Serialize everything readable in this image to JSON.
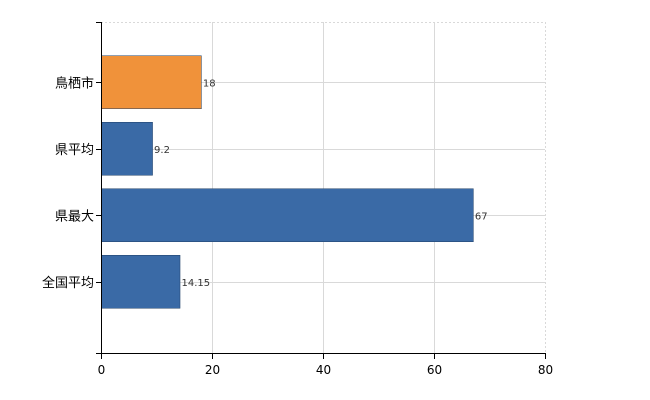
{
  "chart_data": {
    "type": "bar",
    "orientation": "horizontal",
    "categories": [
      "鳥栖市",
      "県平均",
      "県最大",
      "全国平均"
    ],
    "values": [
      18,
      9.2,
      67,
      14.15
    ],
    "data_labels": [
      "18",
      "9.2",
      "67",
      "14.15"
    ],
    "bar_colors": [
      "#f0923a",
      "#3a6aa6",
      "#3a6aa6",
      "#3a6aa6"
    ],
    "xlim": [
      0,
      80
    ],
    "xticks": [
      0,
      20,
      40,
      60,
      80
    ],
    "xtick_labels": [
      "0",
      "20",
      "40",
      "60",
      "80"
    ],
    "grid": true
  }
}
